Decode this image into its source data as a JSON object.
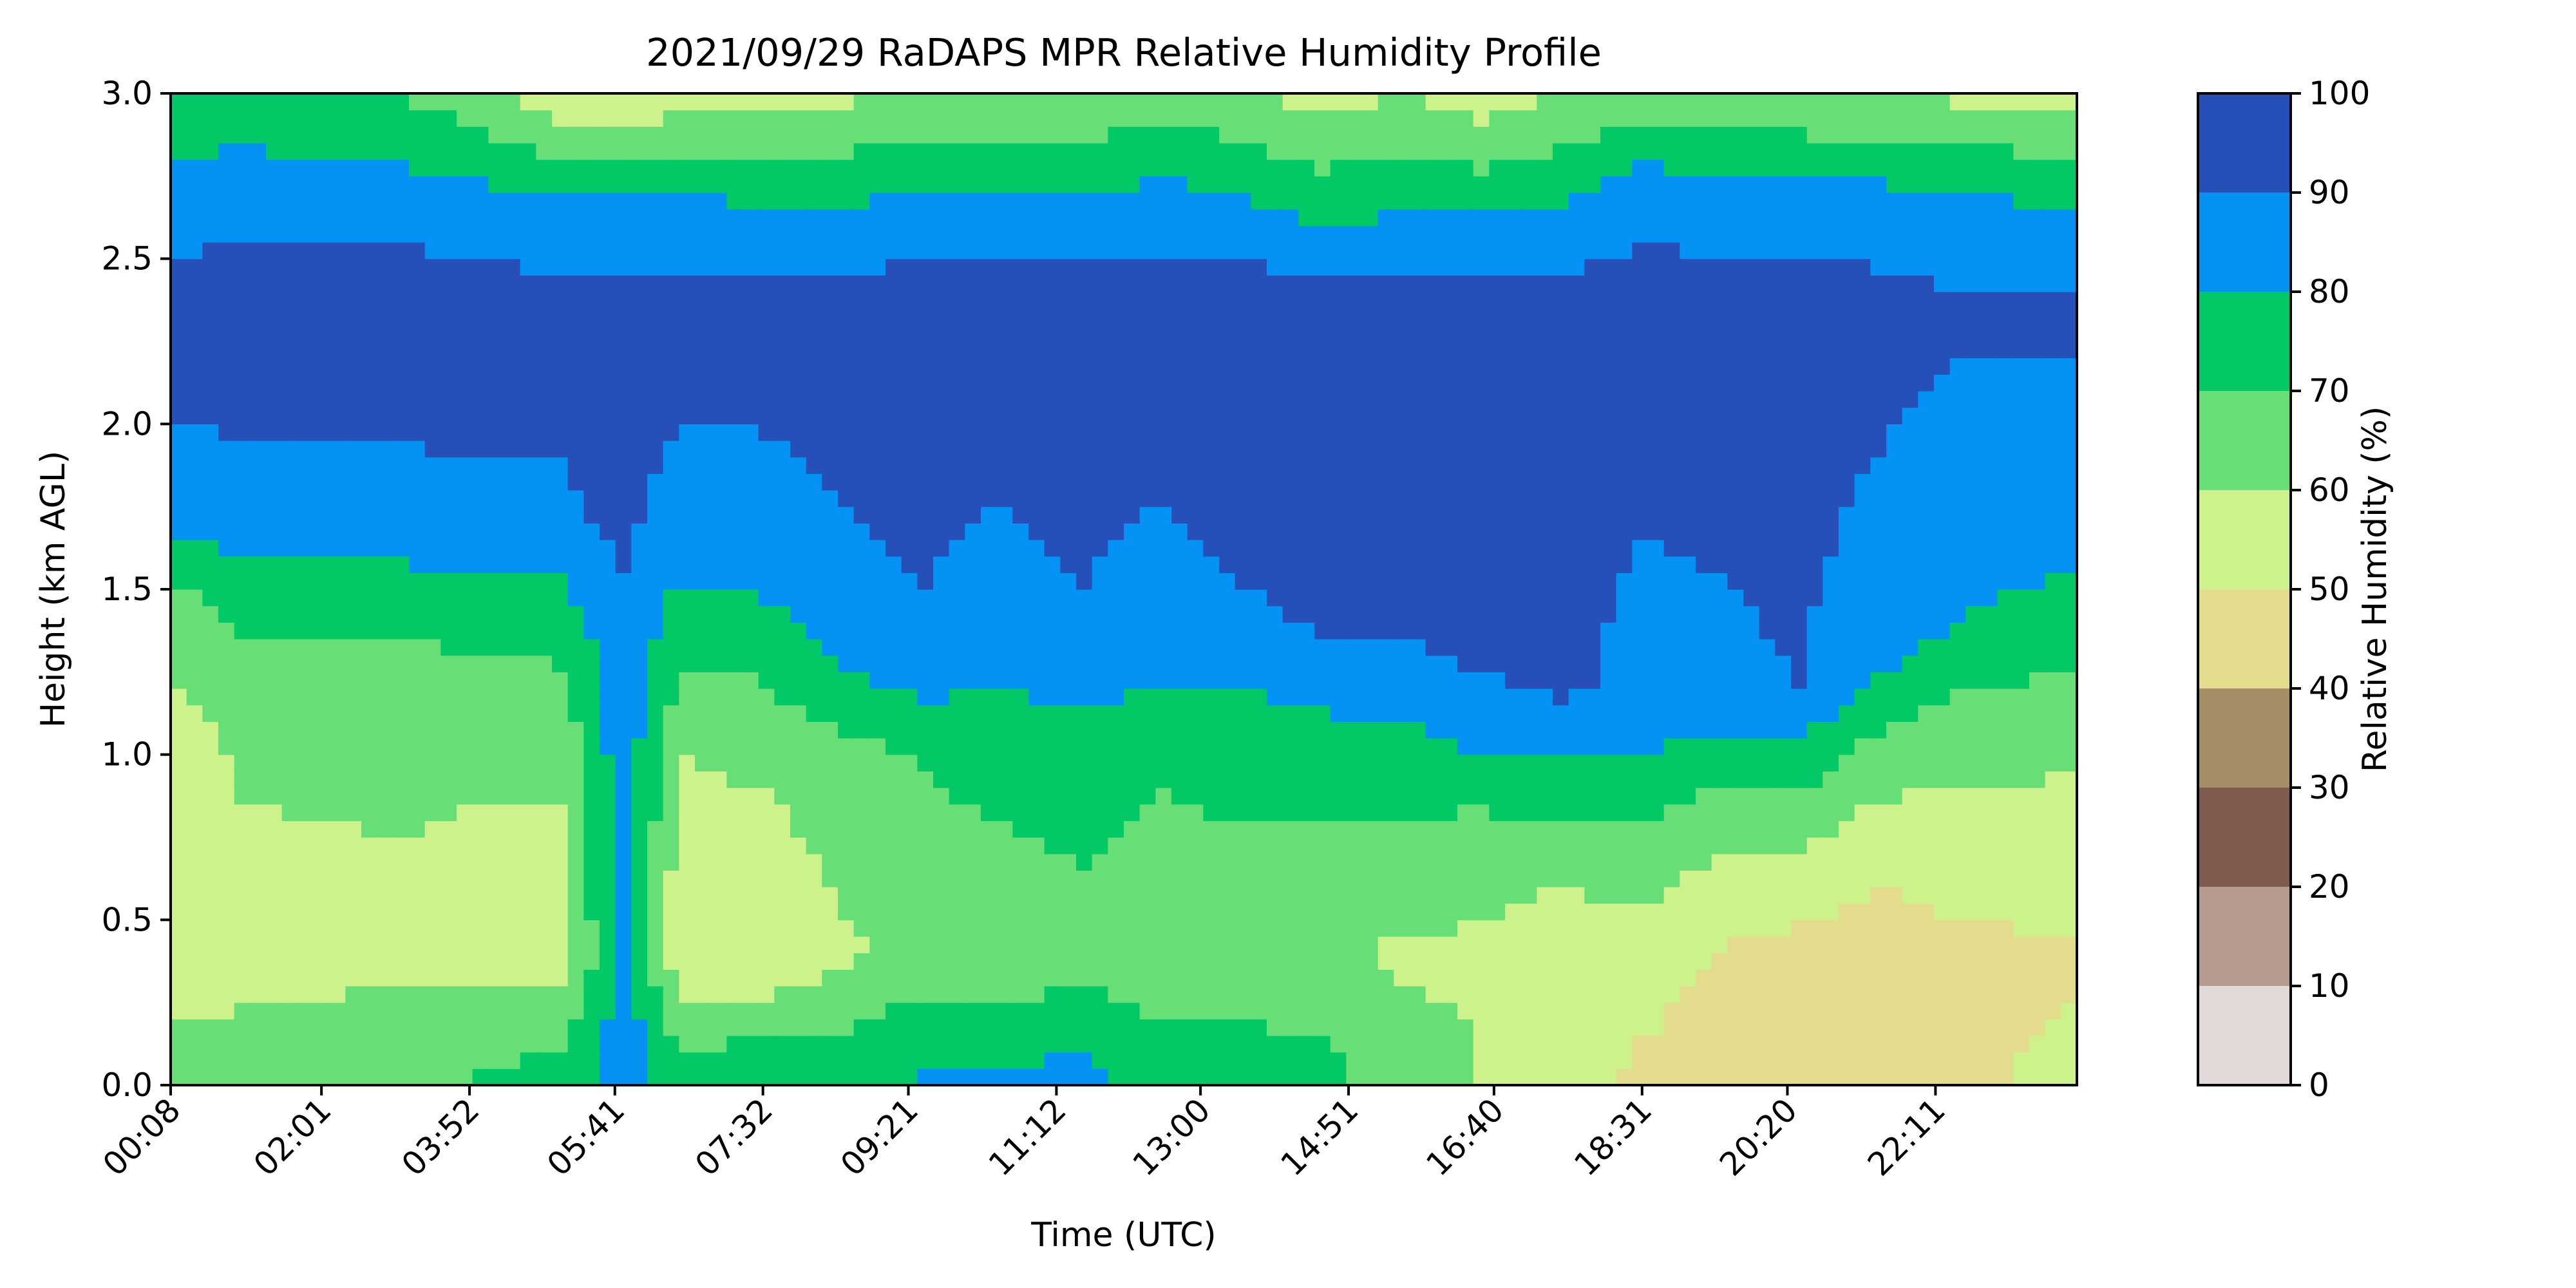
{
  "chart_data": {
    "type": "heatmap",
    "title": "2021/09/29 RaDAPS MPR Relative Humidity Profile",
    "xlabel": "Time (UTC)",
    "ylabel": "Height (km AGL)",
    "x_ticks": [
      "00:08",
      "02:01",
      "03:52",
      "05:41",
      "07:32",
      "09:21",
      "11:12",
      "13:00",
      "14:51",
      "16:40",
      "18:31",
      "20:20",
      "22:11"
    ],
    "x_tick_hours": [
      0.133,
      2.017,
      3.867,
      5.683,
      7.533,
      9.35,
      11.2,
      13.0,
      14.85,
      16.667,
      18.517,
      20.333,
      22.183
    ],
    "x_range_hours": [
      0.133,
      23.95
    ],
    "y_ticks": [
      "0.0",
      "0.5",
      "1.0",
      "1.5",
      "2.0",
      "2.5",
      "3.0"
    ],
    "ylim": [
      0,
      3.0
    ],
    "colorbar": {
      "label": "Relative Humidity (%)",
      "ticks": [
        "0",
        "10",
        "20",
        "30",
        "40",
        "50",
        "60",
        "70",
        "80",
        "90",
        "100"
      ],
      "levels": [
        0,
        10,
        20,
        30,
        40,
        50,
        60,
        70,
        80,
        90,
        100
      ],
      "colors": [
        "#e2dad8",
        "#b59a90",
        "#7f5a4f",
        "#a58d65",
        "#e3dc8c",
        "#cdf28c",
        "#68de77",
        "#02c865",
        "#0592f5",
        "#2650b8"
      ]
    },
    "profiles": [
      {
        "t": 0.133,
        "heights_km": [
          0.05,
          0.35,
          1.05,
          1.5,
          1.7,
          2.35,
          2.7,
          3.0
        ],
        "rh": [
          62,
          58,
          56,
          68,
          86,
          94,
          84,
          72
        ]
      },
      {
        "t": 1.0,
        "heights_km": [
          0.05,
          0.4,
          1.1,
          1.55,
          1.75,
          2.4,
          2.7,
          3.0
        ],
        "rh": [
          64,
          56,
          62,
          76,
          88,
          95,
          85,
          74
        ]
      },
      {
        "t": 2.0,
        "heights_km": [
          0.05,
          0.4,
          1.2,
          1.55,
          1.8,
          2.4,
          2.7,
          3.0
        ],
        "rh": [
          66,
          56,
          64,
          78,
          88,
          95,
          84,
          72
        ]
      },
      {
        "t": 3.0,
        "heights_km": [
          0.05,
          0.4,
          1.2,
          1.5,
          1.75,
          2.4,
          2.7,
          3.0
        ],
        "rh": [
          68,
          57,
          64,
          76,
          88,
          95,
          84,
          70
        ]
      },
      {
        "t": 4.0,
        "heights_km": [
          0.05,
          0.4,
          1.1,
          1.4,
          1.7,
          2.35,
          2.7,
          3.0
        ],
        "rh": [
          70,
          56,
          62,
          74,
          88,
          95,
          82,
          64
        ]
      },
      {
        "t": 5.0,
        "heights_km": [
          0.05,
          0.4,
          1.0,
          1.4,
          1.7,
          2.35,
          2.7,
          3.0
        ],
        "rh": [
          72,
          55,
          62,
          74,
          88,
          95,
          80,
          52
        ]
      },
      {
        "t": 5.8,
        "heights_km": [
          0.05,
          0.4,
          1.0,
          1.4,
          1.7,
          2.35,
          2.7,
          3.0
        ],
        "rh": [
          86,
          84,
          86,
          88,
          92,
          95,
          80,
          50
        ]
      },
      {
        "t": 6.5,
        "heights_km": [
          0.05,
          0.4,
          1.0,
          1.3,
          1.7,
          2.35,
          2.7,
          3.0
        ],
        "rh": [
          74,
          52,
          60,
          72,
          86,
          94,
          80,
          56
        ]
      },
      {
        "t": 7.5,
        "heights_km": [
          0.05,
          0.4,
          1.0,
          1.3,
          1.6,
          2.35,
          2.7,
          3.0
        ],
        "rh": [
          76,
          50,
          62,
          72,
          86,
          94,
          78,
          56
        ]
      },
      {
        "t": 8.5,
        "heights_km": [
          0.05,
          0.4,
          1.0,
          1.2,
          1.5,
          2.35,
          2.7,
          3.0
        ],
        "rh": [
          76,
          58,
          66,
          78,
          88,
          94,
          78,
          58
        ]
      },
      {
        "t": 9.5,
        "heights_km": [
          0.05,
          0.4,
          1.0,
          1.2,
          1.5,
          2.4,
          2.7,
          3.0
        ],
        "rh": [
          80,
          64,
          70,
          82,
          90,
          95,
          80,
          60
        ]
      },
      {
        "t": 10.5,
        "heights_km": [
          0.05,
          0.4,
          0.9,
          1.2,
          1.5,
          2.4,
          2.7,
          3.0
        ],
        "rh": [
          80,
          62,
          72,
          80,
          88,
          95,
          80,
          62
        ]
      },
      {
        "t": 11.5,
        "heights_km": [
          0.05,
          0.4,
          0.9,
          1.2,
          1.5,
          2.4,
          2.7,
          3.0
        ],
        "rh": [
          82,
          66,
          74,
          82,
          90,
          95,
          80,
          62
        ]
      },
      {
        "t": 12.5,
        "heights_km": [
          0.05,
          0.4,
          0.9,
          1.2,
          1.5,
          2.4,
          2.7,
          3.0
        ],
        "rh": [
          76,
          62,
          70,
          80,
          88,
          95,
          82,
          64
        ]
      },
      {
        "t": 13.5,
        "heights_km": [
          0.05,
          0.4,
          0.9,
          1.2,
          1.5,
          2.4,
          2.7,
          3.0
        ],
        "rh": [
          74,
          64,
          72,
          80,
          90,
          95,
          80,
          62
        ]
      },
      {
        "t": 14.5,
        "heights_km": [
          0.05,
          0.4,
          0.8,
          1.2,
          1.4,
          2.35,
          2.6,
          3.0
        ],
        "rh": [
          72,
          64,
          70,
          82,
          92,
          95,
          80,
          56
        ]
      },
      {
        "t": 15.5,
        "heights_km": [
          0.05,
          0.4,
          0.8,
          1.1,
          1.4,
          2.35,
          2.6,
          3.0
        ],
        "rh": [
          66,
          58,
          70,
          80,
          92,
          95,
          82,
          60
        ]
      },
      {
        "t": 16.5,
        "heights_km": [
          0.05,
          0.4,
          0.8,
          1.0,
          1.3,
          2.35,
          2.6,
          3.0
        ],
        "rh": [
          60,
          58,
          68,
          80,
          92,
          95,
          82,
          54
        ]
      },
      {
        "t": 17.5,
        "heights_km": [
          0.05,
          0.3,
          0.6,
          0.9,
          1.2,
          2.35,
          2.6,
          3.0
        ],
        "rh": [
          56,
          52,
          60,
          76,
          92,
          95,
          84,
          60
        ]
      },
      {
        "t": 18.5,
        "heights_km": [
          0.05,
          0.3,
          0.6,
          0.9,
          1.1,
          2.35,
          2.7,
          3.0
        ],
        "rh": [
          48,
          54,
          62,
          74,
          86,
          95,
          86,
          64
        ]
      },
      {
        "t": 19.5,
        "heights_km": [
          0.05,
          0.3,
          0.6,
          0.9,
          1.2,
          2.35,
          2.7,
          3.0
        ],
        "rh": [
          46,
          46,
          56,
          70,
          88,
          95,
          84,
          62
        ]
      },
      {
        "t": 20.5,
        "heights_km": [
          0.05,
          0.3,
          0.6,
          0.9,
          1.2,
          2.35,
          2.7,
          3.0
        ],
        "rh": [
          46,
          44,
          54,
          70,
          90,
          95,
          84,
          60
        ]
      },
      {
        "t": 21.5,
        "heights_km": [
          0.05,
          0.3,
          0.7,
          1.0,
          1.3,
          2.35,
          2.7,
          3.0
        ],
        "rh": [
          46,
          44,
          52,
          66,
          84,
          94,
          82,
          60
        ]
      },
      {
        "t": 22.5,
        "heights_km": [
          0.05,
          0.3,
          0.7,
          1.1,
          1.4,
          2.35,
          2.7,
          3.0
        ],
        "rh": [
          46,
          46,
          54,
          66,
          80,
          92,
          80,
          58
        ]
      },
      {
        "t": 23.95,
        "heights_km": [
          0.05,
          0.3,
          0.8,
          1.2,
          1.6,
          2.35,
          2.7,
          3.0
        ],
        "rh": [
          56,
          48,
          56,
          68,
          82,
          92,
          78,
          56
        ]
      }
    ]
  }
}
